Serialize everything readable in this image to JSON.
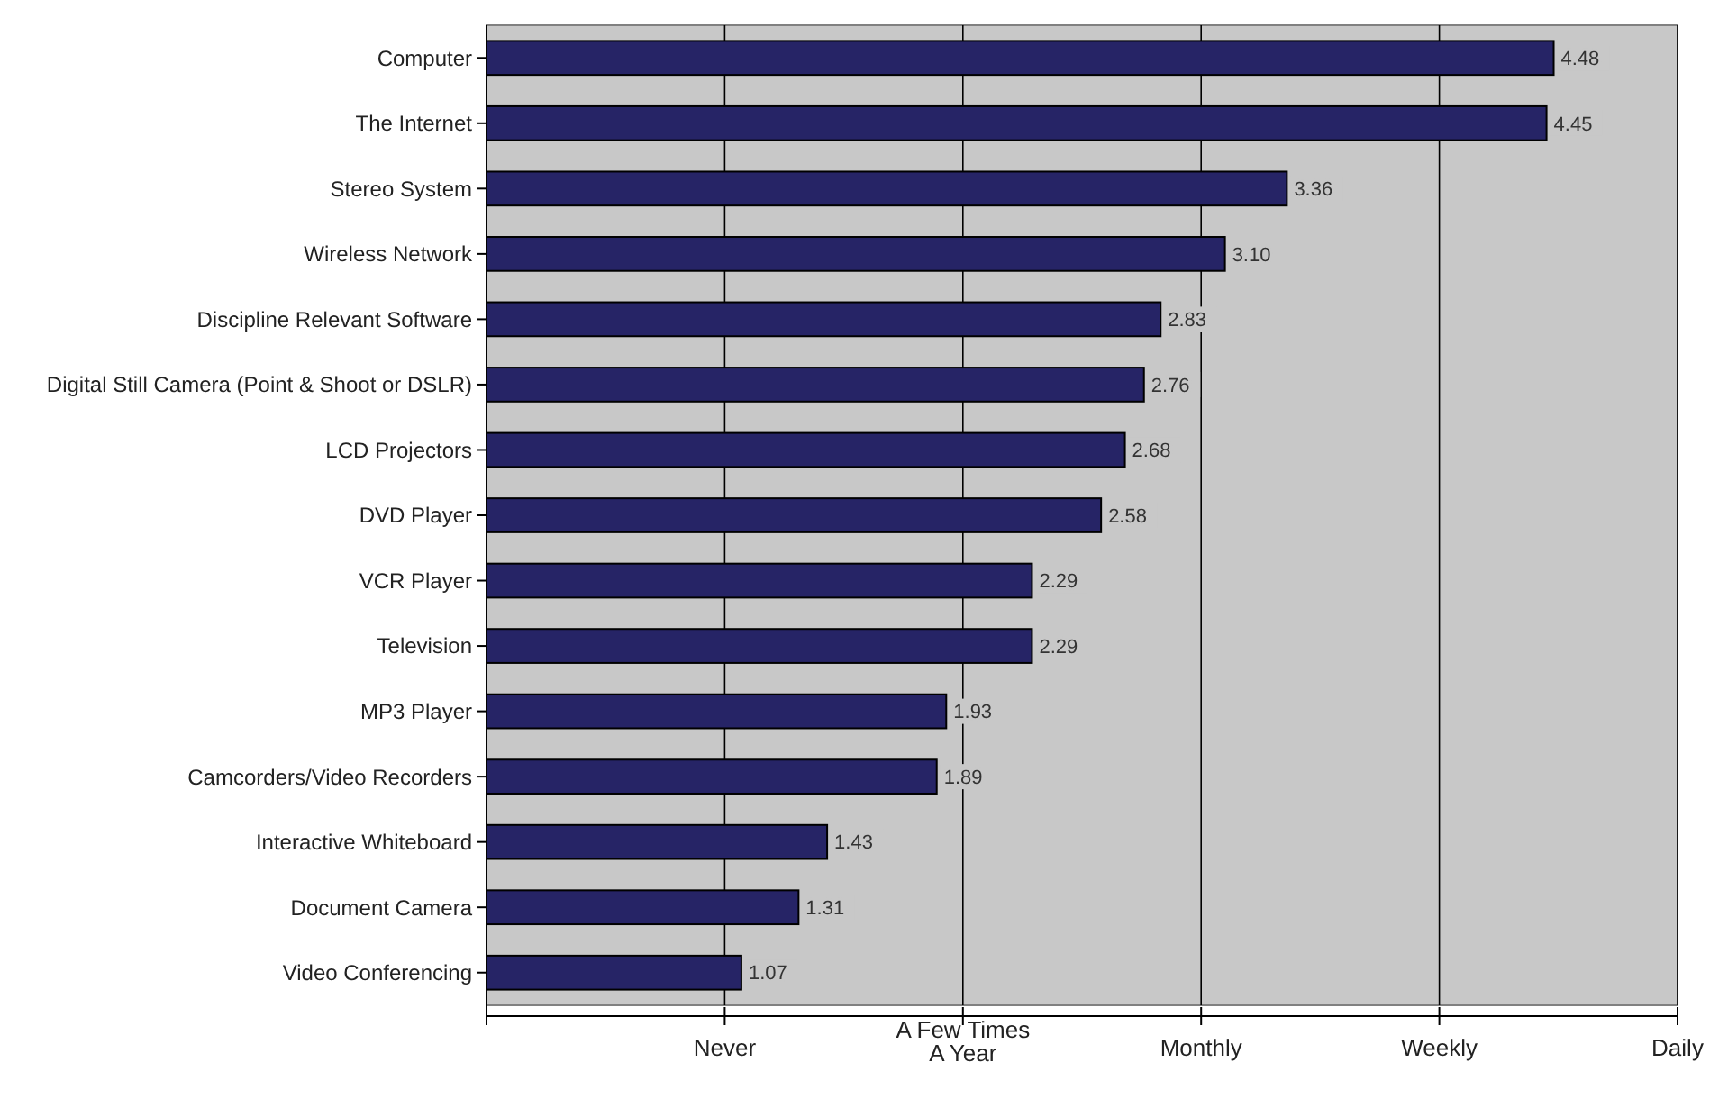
{
  "chart_data": {
    "type": "bar",
    "orientation": "horizontal",
    "categories": [
      "Computer",
      "The Internet",
      "Stereo System",
      "Wireless Network",
      "Discipline Relevant Software",
      "Digital Still Camera (Point & Shoot or DSLR)",
      "LCD Projectors",
      "DVD Player",
      "VCR Player",
      "Television",
      "MP3 Player",
      "Camcorders/Video Recorders",
      "Interactive Whiteboard",
      "Document Camera",
      "Video Conferencing"
    ],
    "values": [
      4.48,
      4.45,
      3.36,
      3.1,
      2.83,
      2.76,
      2.68,
      2.58,
      2.29,
      2.29,
      1.93,
      1.89,
      1.43,
      1.31,
      1.07
    ],
    "value_labels": [
      "4.48",
      "4.45",
      "3.36",
      "3.10",
      "2.83",
      "2.76",
      "2.68",
      "2.58",
      "2.29",
      "2.29",
      "1.93",
      "1.89",
      "1.43",
      "1.31",
      "1.07"
    ],
    "color": "#262466",
    "xlim": [
      0,
      5
    ],
    "ref_lines": [
      {
        "axis": "x",
        "value": 1,
        "label": "Never"
      },
      {
        "axis": "x",
        "value": 2,
        "label": "A Few Times A Year"
      },
      {
        "axis": "x",
        "value": 3,
        "label": "Monthly"
      },
      {
        "axis": "x",
        "value": 4,
        "label": "Weekly"
      },
      {
        "axis": "x",
        "value": 5,
        "label": "Daily"
      }
    ]
  }
}
